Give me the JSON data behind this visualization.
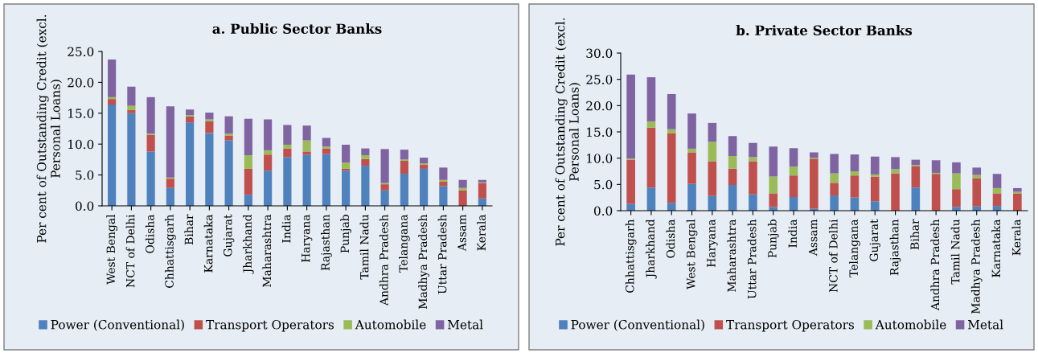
{
  "chart_data": [
    {
      "type": "bar",
      "stacked": true,
      "title": "a. Public Sector Banks",
      "ylabel": "Per cent of Outstanding Credit (excl.\nPersonal Loans)",
      "categories": [
        "West Bengal",
        "NCT of Delhi",
        "Odisha",
        "Chhattisgarh",
        "Bihar",
        "Karnataka",
        "Gujarat",
        "Jharkhand",
        "Maharashtra",
        "India",
        "Haryana",
        "Rajasthan",
        "Punjab",
        "Tamil Nadu",
        "Andhra Pradesh",
        "Telangana",
        "Madhya Pradesh",
        "Uttar Pradesh",
        "Assam",
        "Kerala"
      ],
      "series": [
        {
          "name": "Power (Conventional)",
          "color": "#4f81bd",
          "values": [
            16.4,
            15.0,
            8.8,
            2.9,
            13.5,
            11.8,
            10.6,
            1.8,
            5.7,
            7.9,
            8.3,
            8.4,
            5.7,
            6.5,
            2.5,
            5.2,
            6.0,
            3.2,
            0.0,
            1.2
          ]
        },
        {
          "name": "Transport Operators",
          "color": "#c0504d",
          "values": [
            0.9,
            0.5,
            2.7,
            1.5,
            1.0,
            1.9,
            0.8,
            4.2,
            2.6,
            1.4,
            0.5,
            0.9,
            0.3,
            1.1,
            1.0,
            2.1,
            0.7,
            0.7,
            2.5,
            2.5
          ]
        },
        {
          "name": "Automobile",
          "color": "#9bbb59",
          "values": [
            0.3,
            0.7,
            0.2,
            0.2,
            0.2,
            0.3,
            0.3,
            2.2,
            0.7,
            0.6,
            1.8,
            0.3,
            1.0,
            0.6,
            0.2,
            0.2,
            0.2,
            0.3,
            0.4,
            0.1
          ]
        },
        {
          "name": "Metal",
          "color": "#8064a2",
          "values": [
            6.1,
            3.1,
            5.9,
            11.5,
            0.9,
            1.1,
            2.8,
            5.9,
            5.0,
            3.2,
            2.4,
            1.4,
            2.9,
            1.1,
            5.5,
            1.6,
            0.9,
            2.0,
            1.3,
            0.4
          ]
        }
      ],
      "ylim": [
        0,
        25
      ],
      "yticks": [
        {
          "value": 0,
          "label": "0.0"
        },
        {
          "value": 5,
          "label": "5.0"
        },
        {
          "value": 10,
          "label": "10.0"
        },
        {
          "value": 15,
          "label": "15.0"
        },
        {
          "value": 20,
          "label": "20.0"
        },
        {
          "value": 25,
          "label": "25.0"
        }
      ],
      "grid": false,
      "legend": "bottom"
    },
    {
      "type": "bar",
      "stacked": true,
      "title": "b. Private Sector Banks",
      "ylabel": "Per cent of Outstanding Credit (excl.\nPersonal Loans)",
      "categories": [
        "Chhattisgarh",
        "Jharkhand",
        "Odisha",
        "West Bengal",
        "Haryana",
        "Maharashtra",
        "Uttar Pradesh",
        "Punjab",
        "India",
        "Assam",
        "NCT of Delhi",
        "Telangana",
        "Gujarat",
        "Rajasthan",
        "Bihar",
        "Andhra Pradesh",
        "Tamil Nadu",
        "Madhya Pradesh",
        "Karnataka",
        "Kerala"
      ],
      "series": [
        {
          "name": "Power (Conventional)",
          "color": "#4f81bd",
          "values": [
            1.3,
            4.4,
            1.5,
            5.1,
            2.8,
            4.9,
            3.1,
            0.7,
            2.6,
            0.4,
            2.9,
            2.5,
            1.8,
            0.0,
            4.4,
            0.0,
            0.7,
            0.8,
            0.9,
            0.0
          ]
        },
        {
          "name": "Transport Operators",
          "color": "#c0504d",
          "values": [
            8.4,
            11.4,
            13.2,
            6.0,
            6.6,
            3.1,
            6.3,
            2.6,
            4.1,
            9.5,
            2.4,
            4.2,
            4.7,
            7.1,
            4.1,
            7.0,
            3.4,
            5.4,
            2.4,
            3.3
          ]
        },
        {
          "name": "Automobile",
          "color": "#9bbb59",
          "values": [
            0.2,
            1.2,
            0.8,
            0.7,
            3.7,
            2.4,
            0.8,
            3.2,
            1.7,
            0.2,
            1.8,
            0.8,
            0.4,
            0.8,
            0.2,
            0.2,
            3.0,
            0.6,
            1.0,
            0.3
          ]
        },
        {
          "name": "Metal",
          "color": "#8064a2",
          "values": [
            16.0,
            8.4,
            6.7,
            6.7,
            3.6,
            3.8,
            2.7,
            5.7,
            3.5,
            1.0,
            3.7,
            3.2,
            3.4,
            2.3,
            1.0,
            2.4,
            2.1,
            1.4,
            2.7,
            0.7
          ]
        }
      ],
      "ylim": [
        0,
        30
      ],
      "yticks": [
        {
          "value": 0,
          "label": "0.0"
        },
        {
          "value": 5,
          "label": "5.0"
        },
        {
          "value": 10,
          "label": "10.0"
        },
        {
          "value": 15,
          "label": "15.0"
        },
        {
          "value": 20,
          "label": "20.0"
        },
        {
          "value": 25,
          "label": "25.0"
        },
        {
          "value": 30,
          "label": "30.0"
        }
      ],
      "grid": false,
      "legend": "bottom"
    }
  ]
}
